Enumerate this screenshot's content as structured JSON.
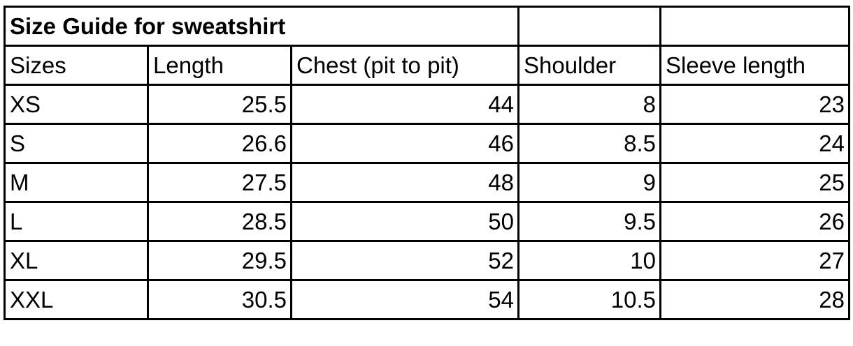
{
  "title": "Size Guide for sweatshirt",
  "columns": [
    "Sizes",
    "Length",
    "Chest (pit to pit)",
    "Shoulder",
    "Sleeve length"
  ],
  "rows": [
    [
      "XS",
      "25.5",
      "44",
      "8",
      "23"
    ],
    [
      "S",
      "26.6",
      "46",
      "8.5",
      "24"
    ],
    [
      "M",
      "27.5",
      "48",
      "9",
      "25"
    ],
    [
      "L",
      "28.5",
      "50",
      "9.5",
      "26"
    ],
    [
      "XL",
      "29.5",
      "52",
      "10",
      "27"
    ],
    [
      "XXL",
      "30.5",
      "54",
      "10.5",
      "28"
    ]
  ]
}
